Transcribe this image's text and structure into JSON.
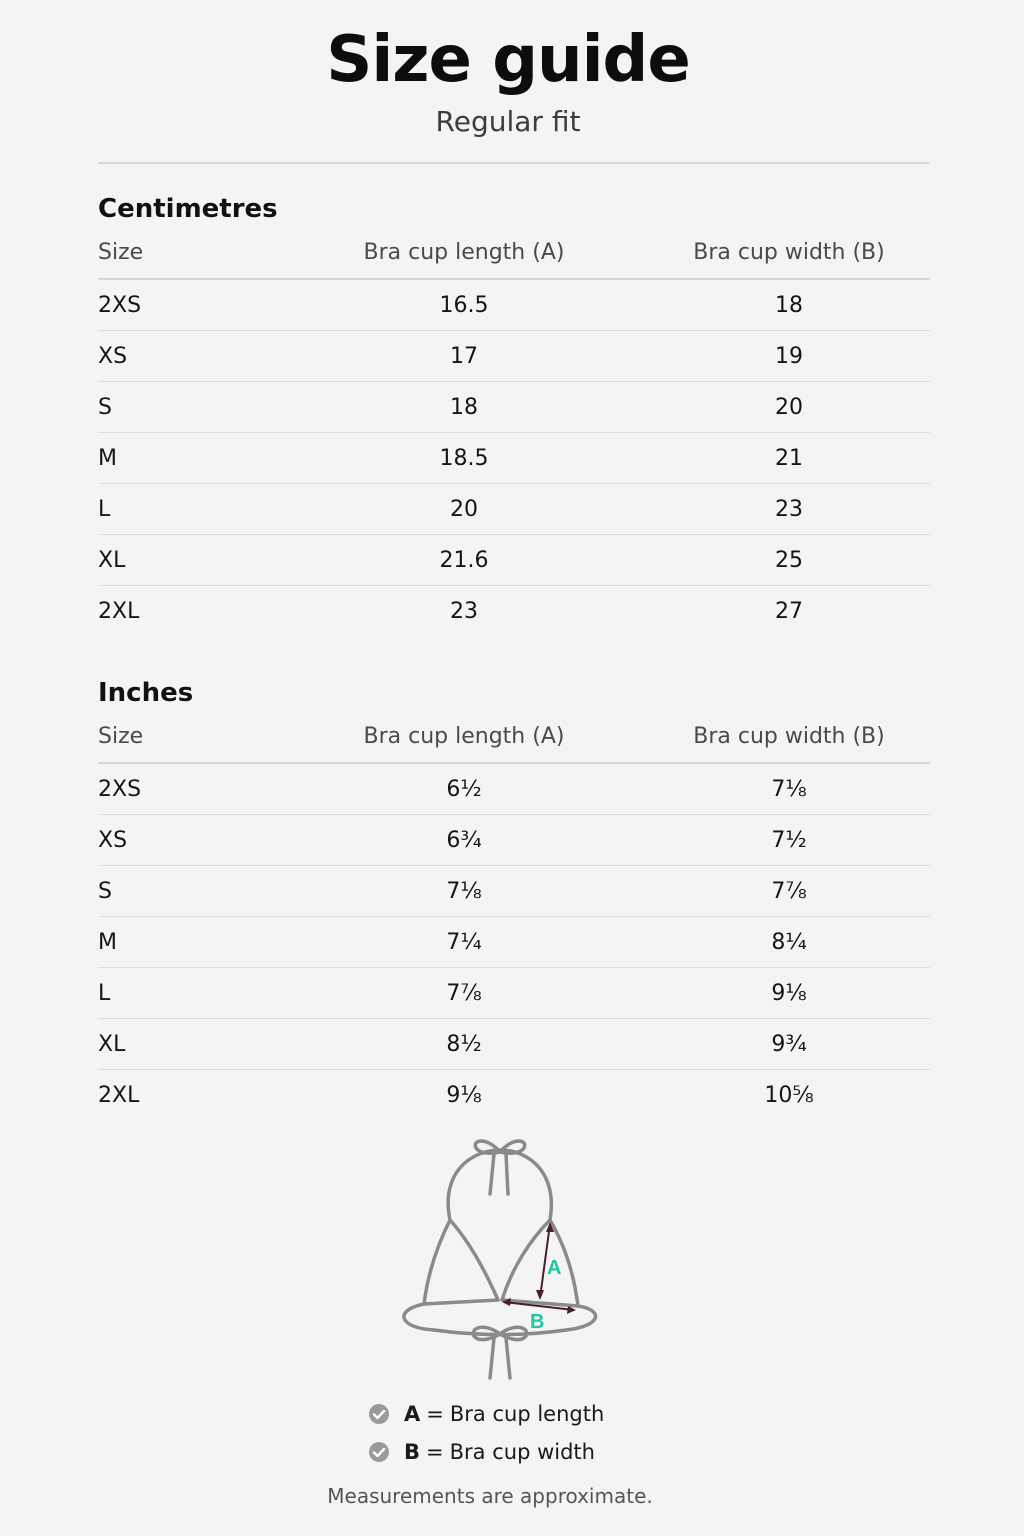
{
  "header": {
    "title": "Size guide",
    "subtitle": "Regular fit"
  },
  "tables": {
    "cm": {
      "title": "Centimetres",
      "headers": [
        "Size",
        "Bra cup length (A)",
        "Bra cup width (B)"
      ],
      "rows": [
        [
          "2XS",
          "16.5",
          "18"
        ],
        [
          "XS",
          "17",
          "19"
        ],
        [
          "S",
          "18",
          "20"
        ],
        [
          "M",
          "18.5",
          "21"
        ],
        [
          "L",
          "20",
          "23"
        ],
        [
          "XL",
          "21.6",
          "25"
        ],
        [
          "2XL",
          "23",
          "27"
        ]
      ]
    },
    "in": {
      "title": "Inches",
      "headers": [
        "Size",
        "Bra cup length (A)",
        "Bra cup width (B)"
      ],
      "rows": [
        [
          "2XS",
          "6½",
          "7⅛"
        ],
        [
          "XS",
          "6¾",
          "7½"
        ],
        [
          "S",
          "7⅛",
          "7⅞"
        ],
        [
          "M",
          "7¼",
          "8¼"
        ],
        [
          "L",
          "7⅞",
          "9⅛"
        ],
        [
          "XL",
          "8½",
          "9¾"
        ],
        [
          "2XL",
          "9⅛",
          "10⅝"
        ]
      ]
    }
  },
  "diagram": {
    "label_a": "A",
    "label_b": "B",
    "outline_color": "#8a8a8a",
    "arrow_color": "#4a1f25",
    "label_color": "#1fc7a3"
  },
  "legend": {
    "a": {
      "key": "A",
      "eq": "=",
      "text": "Bra cup length",
      "icon": "check-circle-icon"
    },
    "b": {
      "key": "B",
      "eq": "=",
      "text": "Bra cup width",
      "icon": "check-circle-icon"
    }
  },
  "footnote": "Measurements are approximate."
}
